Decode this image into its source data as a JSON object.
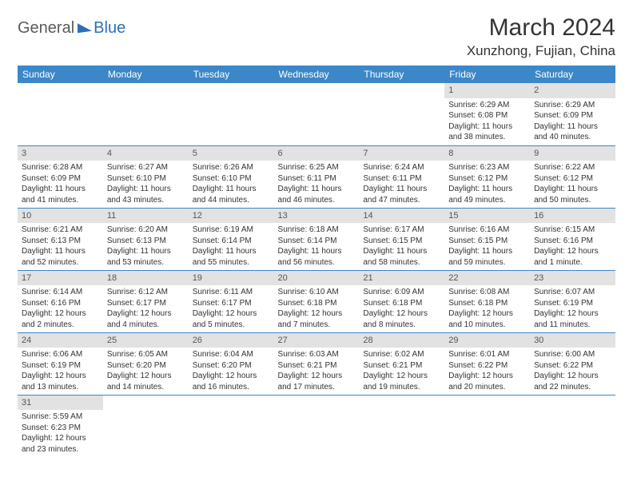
{
  "logo": {
    "part1": "General",
    "part2": "Blue"
  },
  "title": "March 2024",
  "location": "Xunzhong, Fujian, China",
  "header_bg": "#3b87c8",
  "daynum_bg": "#e2e2e2",
  "border_color": "#3b87c8",
  "weekdays": [
    "Sunday",
    "Monday",
    "Tuesday",
    "Wednesday",
    "Thursday",
    "Friday",
    "Saturday"
  ],
  "weeks": [
    [
      null,
      null,
      null,
      null,
      null,
      {
        "n": "1",
        "sr": "Sunrise: 6:29 AM",
        "ss": "Sunset: 6:08 PM",
        "dl": "Daylight: 11 hours and 38 minutes."
      },
      {
        "n": "2",
        "sr": "Sunrise: 6:29 AM",
        "ss": "Sunset: 6:09 PM",
        "dl": "Daylight: 11 hours and 40 minutes."
      }
    ],
    [
      {
        "n": "3",
        "sr": "Sunrise: 6:28 AM",
        "ss": "Sunset: 6:09 PM",
        "dl": "Daylight: 11 hours and 41 minutes."
      },
      {
        "n": "4",
        "sr": "Sunrise: 6:27 AM",
        "ss": "Sunset: 6:10 PM",
        "dl": "Daylight: 11 hours and 43 minutes."
      },
      {
        "n": "5",
        "sr": "Sunrise: 6:26 AM",
        "ss": "Sunset: 6:10 PM",
        "dl": "Daylight: 11 hours and 44 minutes."
      },
      {
        "n": "6",
        "sr": "Sunrise: 6:25 AM",
        "ss": "Sunset: 6:11 PM",
        "dl": "Daylight: 11 hours and 46 minutes."
      },
      {
        "n": "7",
        "sr": "Sunrise: 6:24 AM",
        "ss": "Sunset: 6:11 PM",
        "dl": "Daylight: 11 hours and 47 minutes."
      },
      {
        "n": "8",
        "sr": "Sunrise: 6:23 AM",
        "ss": "Sunset: 6:12 PM",
        "dl": "Daylight: 11 hours and 49 minutes."
      },
      {
        "n": "9",
        "sr": "Sunrise: 6:22 AM",
        "ss": "Sunset: 6:12 PM",
        "dl": "Daylight: 11 hours and 50 minutes."
      }
    ],
    [
      {
        "n": "10",
        "sr": "Sunrise: 6:21 AM",
        "ss": "Sunset: 6:13 PM",
        "dl": "Daylight: 11 hours and 52 minutes."
      },
      {
        "n": "11",
        "sr": "Sunrise: 6:20 AM",
        "ss": "Sunset: 6:13 PM",
        "dl": "Daylight: 11 hours and 53 minutes."
      },
      {
        "n": "12",
        "sr": "Sunrise: 6:19 AM",
        "ss": "Sunset: 6:14 PM",
        "dl": "Daylight: 11 hours and 55 minutes."
      },
      {
        "n": "13",
        "sr": "Sunrise: 6:18 AM",
        "ss": "Sunset: 6:14 PM",
        "dl": "Daylight: 11 hours and 56 minutes."
      },
      {
        "n": "14",
        "sr": "Sunrise: 6:17 AM",
        "ss": "Sunset: 6:15 PM",
        "dl": "Daylight: 11 hours and 58 minutes."
      },
      {
        "n": "15",
        "sr": "Sunrise: 6:16 AM",
        "ss": "Sunset: 6:15 PM",
        "dl": "Daylight: 11 hours and 59 minutes."
      },
      {
        "n": "16",
        "sr": "Sunrise: 6:15 AM",
        "ss": "Sunset: 6:16 PM",
        "dl": "Daylight: 12 hours and 1 minute."
      }
    ],
    [
      {
        "n": "17",
        "sr": "Sunrise: 6:14 AM",
        "ss": "Sunset: 6:16 PM",
        "dl": "Daylight: 12 hours and 2 minutes."
      },
      {
        "n": "18",
        "sr": "Sunrise: 6:12 AM",
        "ss": "Sunset: 6:17 PM",
        "dl": "Daylight: 12 hours and 4 minutes."
      },
      {
        "n": "19",
        "sr": "Sunrise: 6:11 AM",
        "ss": "Sunset: 6:17 PM",
        "dl": "Daylight: 12 hours and 5 minutes."
      },
      {
        "n": "20",
        "sr": "Sunrise: 6:10 AM",
        "ss": "Sunset: 6:18 PM",
        "dl": "Daylight: 12 hours and 7 minutes."
      },
      {
        "n": "21",
        "sr": "Sunrise: 6:09 AM",
        "ss": "Sunset: 6:18 PM",
        "dl": "Daylight: 12 hours and 8 minutes."
      },
      {
        "n": "22",
        "sr": "Sunrise: 6:08 AM",
        "ss": "Sunset: 6:18 PM",
        "dl": "Daylight: 12 hours and 10 minutes."
      },
      {
        "n": "23",
        "sr": "Sunrise: 6:07 AM",
        "ss": "Sunset: 6:19 PM",
        "dl": "Daylight: 12 hours and 11 minutes."
      }
    ],
    [
      {
        "n": "24",
        "sr": "Sunrise: 6:06 AM",
        "ss": "Sunset: 6:19 PM",
        "dl": "Daylight: 12 hours and 13 minutes."
      },
      {
        "n": "25",
        "sr": "Sunrise: 6:05 AM",
        "ss": "Sunset: 6:20 PM",
        "dl": "Daylight: 12 hours and 14 minutes."
      },
      {
        "n": "26",
        "sr": "Sunrise: 6:04 AM",
        "ss": "Sunset: 6:20 PM",
        "dl": "Daylight: 12 hours and 16 minutes."
      },
      {
        "n": "27",
        "sr": "Sunrise: 6:03 AM",
        "ss": "Sunset: 6:21 PM",
        "dl": "Daylight: 12 hours and 17 minutes."
      },
      {
        "n": "28",
        "sr": "Sunrise: 6:02 AM",
        "ss": "Sunset: 6:21 PM",
        "dl": "Daylight: 12 hours and 19 minutes."
      },
      {
        "n": "29",
        "sr": "Sunrise: 6:01 AM",
        "ss": "Sunset: 6:22 PM",
        "dl": "Daylight: 12 hours and 20 minutes."
      },
      {
        "n": "30",
        "sr": "Sunrise: 6:00 AM",
        "ss": "Sunset: 6:22 PM",
        "dl": "Daylight: 12 hours and 22 minutes."
      }
    ],
    [
      {
        "n": "31",
        "sr": "Sunrise: 5:59 AM",
        "ss": "Sunset: 6:23 PM",
        "dl": "Daylight: 12 hours and 23 minutes."
      },
      null,
      null,
      null,
      null,
      null,
      null
    ]
  ]
}
